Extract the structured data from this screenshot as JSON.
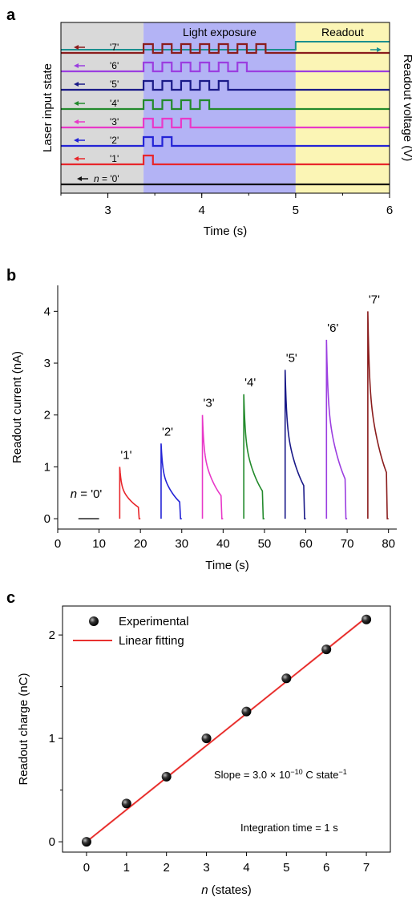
{
  "colors": {
    "gray_region": "#d9d9d9",
    "light_region": "#b3b3f5",
    "readout_region": "#fbf5b5",
    "teal": "#1a8f8f",
    "fit_red": "#e8312f"
  },
  "panels": {
    "a": {
      "letter": "a"
    },
    "b": {
      "letter": "b"
    },
    "c": {
      "letter": "c"
    }
  },
  "chart_data": [
    {
      "type": "line",
      "panel": "a",
      "region_labels": {
        "light": "Light exposure",
        "readout": "Readout"
      },
      "xlabel": "Time (s)",
      "ylabel_left": "Laser input state",
      "ylabel_right": "Readout voltage (V)",
      "xlim": [
        2.5,
        6
      ],
      "xticks": [
        3,
        4,
        5,
        6
      ],
      "light_start": 3.38,
      "readout_start": 5.0,
      "pulse_width": 0.1,
      "pulse_period": 0.2,
      "readout_step": {
        "low_until": 5.0,
        "high_after": 5.0
      },
      "series": [
        {
          "label": "n = '0'",
          "pulses": 0,
          "color": "#111111"
        },
        {
          "label": "'1'",
          "pulses": 1,
          "color": "#e8262b"
        },
        {
          "label": "'2'",
          "pulses": 2,
          "color": "#2323d6"
        },
        {
          "label": "'3'",
          "pulses": 3,
          "color": "#e838c8"
        },
        {
          "label": "'4'",
          "pulses": 4,
          "color": "#238a2c"
        },
        {
          "label": "'5'",
          "pulses": 5,
          "color": "#1a1a88"
        },
        {
          "label": "'6'",
          "pulses": 6,
          "color": "#9b3ee0"
        },
        {
          "label": "'7'",
          "pulses": 7,
          "color": "#8a1c1c"
        }
      ]
    },
    {
      "type": "line",
      "panel": "b",
      "xlabel": "Time (s)",
      "ylabel": "Readout current (nA)",
      "xlim": [
        0,
        82
      ],
      "ylim": [
        -0.2,
        4.5
      ],
      "xticks": [
        0,
        10,
        20,
        30,
        40,
        50,
        60,
        70,
        80
      ],
      "yticks": [
        0,
        1,
        2,
        3,
        4
      ],
      "baseline": {
        "label": "n = '0'",
        "x": [
          5,
          10
        ],
        "y": 0
      },
      "series": [
        {
          "label": "'1'",
          "start": 15,
          "end": 20,
          "peak": 1.0,
          "color": "#e8262b"
        },
        {
          "label": "'2'",
          "start": 25,
          "end": 30,
          "peak": 1.45,
          "color": "#2323d6"
        },
        {
          "label": "'3'",
          "start": 35,
          "end": 40,
          "peak": 2.0,
          "color": "#e838c8"
        },
        {
          "label": "'4'",
          "start": 45,
          "end": 50,
          "peak": 2.4,
          "color": "#238a2c"
        },
        {
          "label": "'5'",
          "start": 55,
          "end": 60,
          "peak": 2.87,
          "color": "#1a1a88"
        },
        {
          "label": "'6'",
          "start": 65,
          "end": 70,
          "peak": 3.45,
          "color": "#9b3ee0"
        },
        {
          "label": "'7'",
          "start": 75,
          "end": 80,
          "peak": 4.0,
          "color": "#8a1c1c"
        }
      ]
    },
    {
      "type": "scatter",
      "panel": "c",
      "xlabel": "n (states)",
      "ylabel": "Readout charge (nC)",
      "xlim": [
        -0.6,
        7.6
      ],
      "ylim": [
        -0.1,
        2.28
      ],
      "xticks": [
        0,
        1,
        2,
        3,
        4,
        5,
        6,
        7
      ],
      "yticks": [
        0,
        1,
        2
      ],
      "legend": [
        "Experimental",
        "Linear fitting"
      ],
      "legend_position": "top-left",
      "x": [
        0,
        1,
        2,
        3,
        4,
        5,
        6,
        7
      ],
      "y": [
        0.0,
        0.37,
        0.63,
        1.0,
        1.26,
        1.58,
        1.86,
        2.15
      ],
      "fit": {
        "x": [
          0,
          7
        ],
        "y": [
          0.0,
          2.17
        ]
      },
      "annotations": {
        "slope_prefix": "Slope = 3.0 × 10",
        "slope_exp": "−10",
        "slope_mid": " C state",
        "slope_sup": "−1",
        "integration": "Integration time = 1 s"
      }
    }
  ]
}
